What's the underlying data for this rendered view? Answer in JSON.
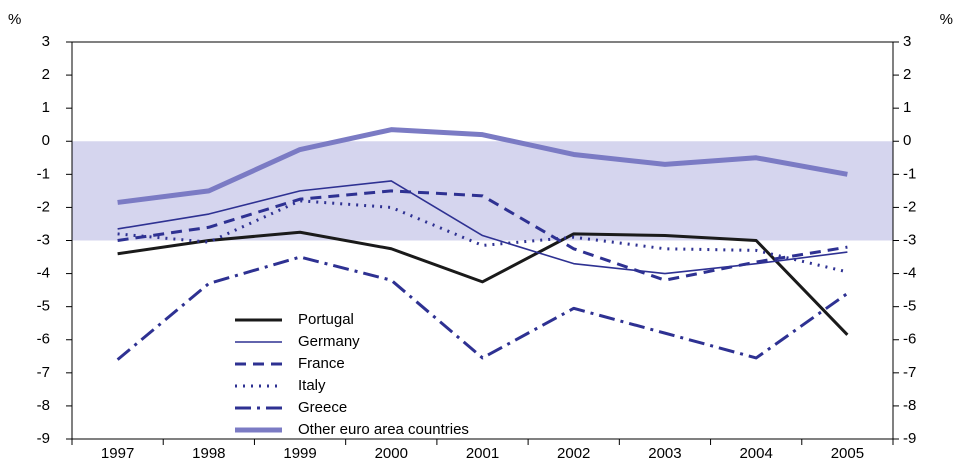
{
  "chart_data": {
    "type": "line",
    "y_label": "%",
    "categories": [
      "1997",
      "1998",
      "1999",
      "2000",
      "2001",
      "2002",
      "2003",
      "2004",
      "2005"
    ],
    "band": [
      -3,
      0
    ],
    "band_color": "#d5d5ee",
    "ylim": [
      -9,
      3
    ],
    "yticks": [
      3,
      2,
      1,
      0,
      -1,
      -2,
      -3,
      -4,
      -5,
      -6,
      -7,
      -8,
      -9
    ],
    "series": [
      {
        "name": "Portugal",
        "color": "#1a1a1a",
        "width": 3,
        "dash": "",
        "values": [
          -3.4,
          -3.0,
          -2.75,
          -3.25,
          -4.25,
          -2.8,
          -2.85,
          -3.0,
          -5.85
        ]
      },
      {
        "name": "Germany",
        "color": "#2e3192",
        "width": 1.6,
        "dash": "",
        "values": [
          -2.65,
          -2.2,
          -1.5,
          -1.2,
          -2.85,
          -3.7,
          -4.0,
          -3.7,
          -3.35
        ]
      },
      {
        "name": "France",
        "color": "#2e3192",
        "width": 3,
        "dash": "11,7",
        "values": [
          -3.0,
          -2.6,
          -1.75,
          -1.5,
          -1.65,
          -3.25,
          -4.2,
          -3.65,
          -3.2
        ]
      },
      {
        "name": "Italy",
        "color": "#2e3192",
        "width": 3,
        "dash": "2,6",
        "values": [
          -2.8,
          -3.05,
          -1.8,
          -2.0,
          -3.15,
          -2.9,
          -3.25,
          -3.3,
          -3.95
        ]
      },
      {
        "name": "Greece",
        "color": "#2e3192",
        "width": 3,
        "dash": "16,6,3,6",
        "values": [
          -6.6,
          -4.3,
          -3.5,
          -4.2,
          -6.55,
          -5.05,
          -5.8,
          -6.55,
          -4.6
        ]
      },
      {
        "name": "Other euro area countries",
        "color": "#7b7bc4",
        "width": 5,
        "dash": "",
        "values": [
          -1.85,
          -1.5,
          -0.25,
          0.35,
          0.2,
          -0.4,
          -0.7,
          -0.5,
          -1.0
        ]
      }
    ]
  }
}
